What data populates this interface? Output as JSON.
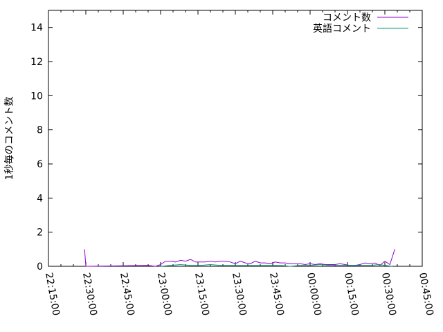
{
  "chart_data": {
    "type": "line",
    "title": "",
    "xlabel": "",
    "ylabel": "1秒毎のコメント数",
    "xlim": [
      "22:15:00",
      "00:45:00"
    ],
    "ylim": [
      0,
      15
    ],
    "x_tick_labels": [
      "22:15:00",
      "22:30:00",
      "22:45:00",
      "23:00:00",
      "23:15:00",
      "23:30:00",
      "23:45:00",
      "00:00:00",
      "00:15:00",
      "00:30:00",
      "00:45:00"
    ],
    "y_tick_labels": [
      "0",
      "2",
      "4",
      "6",
      "8",
      "10",
      "12",
      "14"
    ],
    "grid": false,
    "legend_position": "top-right",
    "series": [
      {
        "name": "コメント数",
        "color": "#9400d3",
        "x": [
          "22:29:30",
          "22:30:00",
          "22:31:00",
          "22:55:00",
          "22:58:00",
          "23:00:00",
          "23:02:00",
          "23:04:00",
          "23:06:00",
          "23:08:00",
          "23:10:00",
          "23:12:00",
          "23:14:00",
          "23:16:00",
          "23:18:00",
          "23:20:00",
          "23:22:00",
          "23:24:00",
          "23:26:00",
          "23:28:00",
          "23:30:00",
          "23:32:00",
          "23:34:00",
          "23:36:00",
          "23:38:00",
          "23:40:00",
          "23:42:00",
          "23:44:00",
          "23:46:00",
          "23:48:00",
          "23:50:00",
          "23:52:00",
          "23:54:00",
          "23:56:00",
          "23:58:00",
          "00:00:00",
          "00:02:00",
          "00:04:00",
          "00:06:00",
          "00:08:00",
          "00:10:00",
          "00:12:00",
          "00:14:00",
          "00:16:00",
          "00:18:00",
          "00:20:00",
          "00:22:00",
          "00:24:00",
          "00:26:00",
          "00:28:00",
          "00:30:00",
          "00:32:00",
          "00:34:00"
        ],
        "y": [
          1,
          0,
          0,
          0.05,
          0,
          0.1,
          0.3,
          0.3,
          0.25,
          0.35,
          0.3,
          0.4,
          0.25,
          0.25,
          0.25,
          0.3,
          0.25,
          0.3,
          0.3,
          0.25,
          0.15,
          0.3,
          0.2,
          0.15,
          0.3,
          0.2,
          0.2,
          0.15,
          0.25,
          0.2,
          0.2,
          0.15,
          0.15,
          0.15,
          0.1,
          0.15,
          0.1,
          0.15,
          0.1,
          0.1,
          0.1,
          0.15,
          0.1,
          0.05,
          0.05,
          0.1,
          0.2,
          0.15,
          0.2,
          0.05,
          0.3,
          0.1,
          1
        ]
      },
      {
        "name": "英語コメント",
        "color": "#009e73",
        "x": [
          "23:00:00",
          "23:04:00",
          "23:08:00",
          "23:12:00",
          "23:16:00",
          "23:20:00",
          "23:24:00",
          "23:28:00",
          "23:32:00",
          "23:36:00",
          "23:40:00",
          "23:44:00",
          "23:48:00",
          "23:52:00",
          "23:56:00",
          "00:00:00",
          "00:04:00",
          "00:08:00",
          "00:12:00",
          "00:16:00",
          "00:20:00",
          "00:24:00",
          "00:28:00",
          "00:30:00",
          "00:33:00"
        ],
        "y": [
          0,
          0.05,
          0.1,
          0.05,
          0.05,
          0.1,
          0.05,
          0.05,
          0.05,
          0.05,
          0.05,
          0.05,
          0.05,
          0,
          0.05,
          0.05,
          0.1,
          0.05,
          0.05,
          0.05,
          0.05,
          0.05,
          0.1,
          0.05,
          0
        ]
      }
    ]
  }
}
